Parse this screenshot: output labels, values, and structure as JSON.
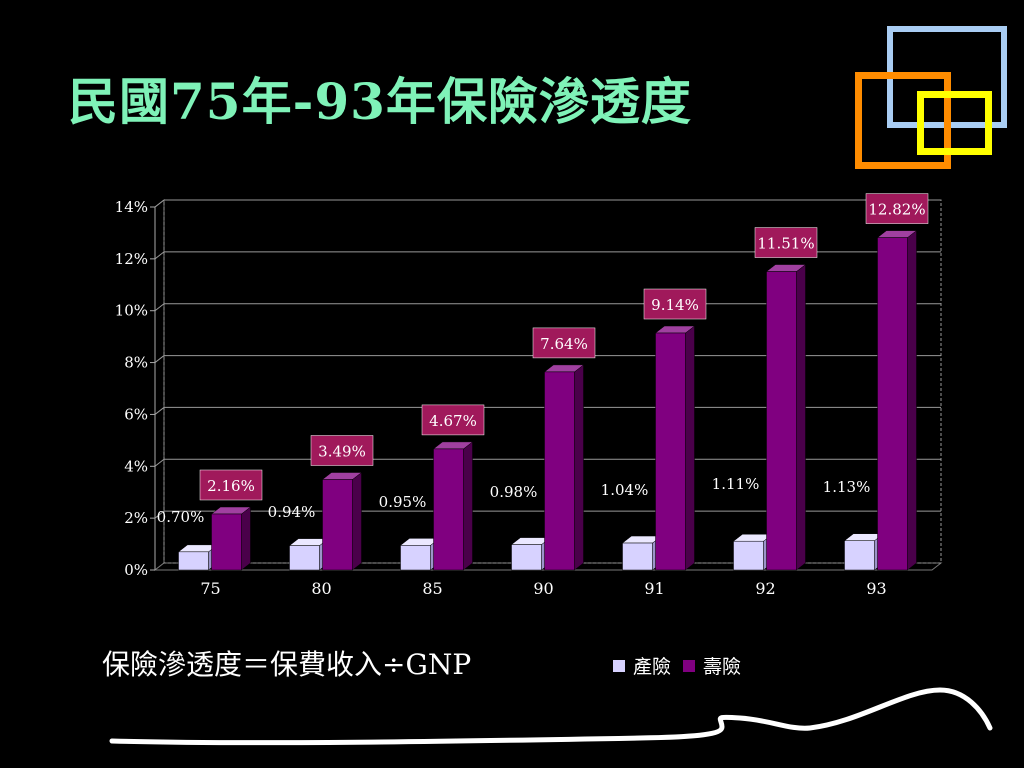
{
  "slide": {
    "title": "民國75年-93年保險滲透度",
    "formula": "保險滲透度＝保費收入÷GNP"
  },
  "colors": {
    "title": "#7ff2b8",
    "property": "#d7d2ff",
    "life": "#800080",
    "label_box": "#a0195b",
    "deco_blue": "#a9cdf3",
    "deco_orange": "#ff8c00",
    "deco_yellow": "#ffff00"
  },
  "chart_data": {
    "type": "bar",
    "categories": [
      "75",
      "80",
      "85",
      "90",
      "91",
      "92",
      "93"
    ],
    "series": [
      {
        "name": "產險",
        "values": [
          0.7,
          0.94,
          0.95,
          0.98,
          1.04,
          1.11,
          1.13
        ],
        "labels": [
          "0.70%",
          "0.94%",
          "0.95%",
          "0.98%",
          "1.04%",
          "1.11%",
          "1.13%"
        ]
      },
      {
        "name": "壽險",
        "values": [
          2.16,
          3.49,
          4.67,
          7.64,
          9.14,
          11.51,
          12.82
        ],
        "labels": [
          "2.16%",
          "3.49%",
          "4.67%",
          "7.64%",
          "9.14%",
          "11.51%",
          "12.82%"
        ]
      }
    ],
    "yticks": [
      "0%",
      "2%",
      "4%",
      "6%",
      "8%",
      "10%",
      "12%",
      "14%"
    ],
    "ylim": [
      0,
      14
    ],
    "grid": true,
    "legend_position": "bottom-right",
    "three_d": true
  }
}
